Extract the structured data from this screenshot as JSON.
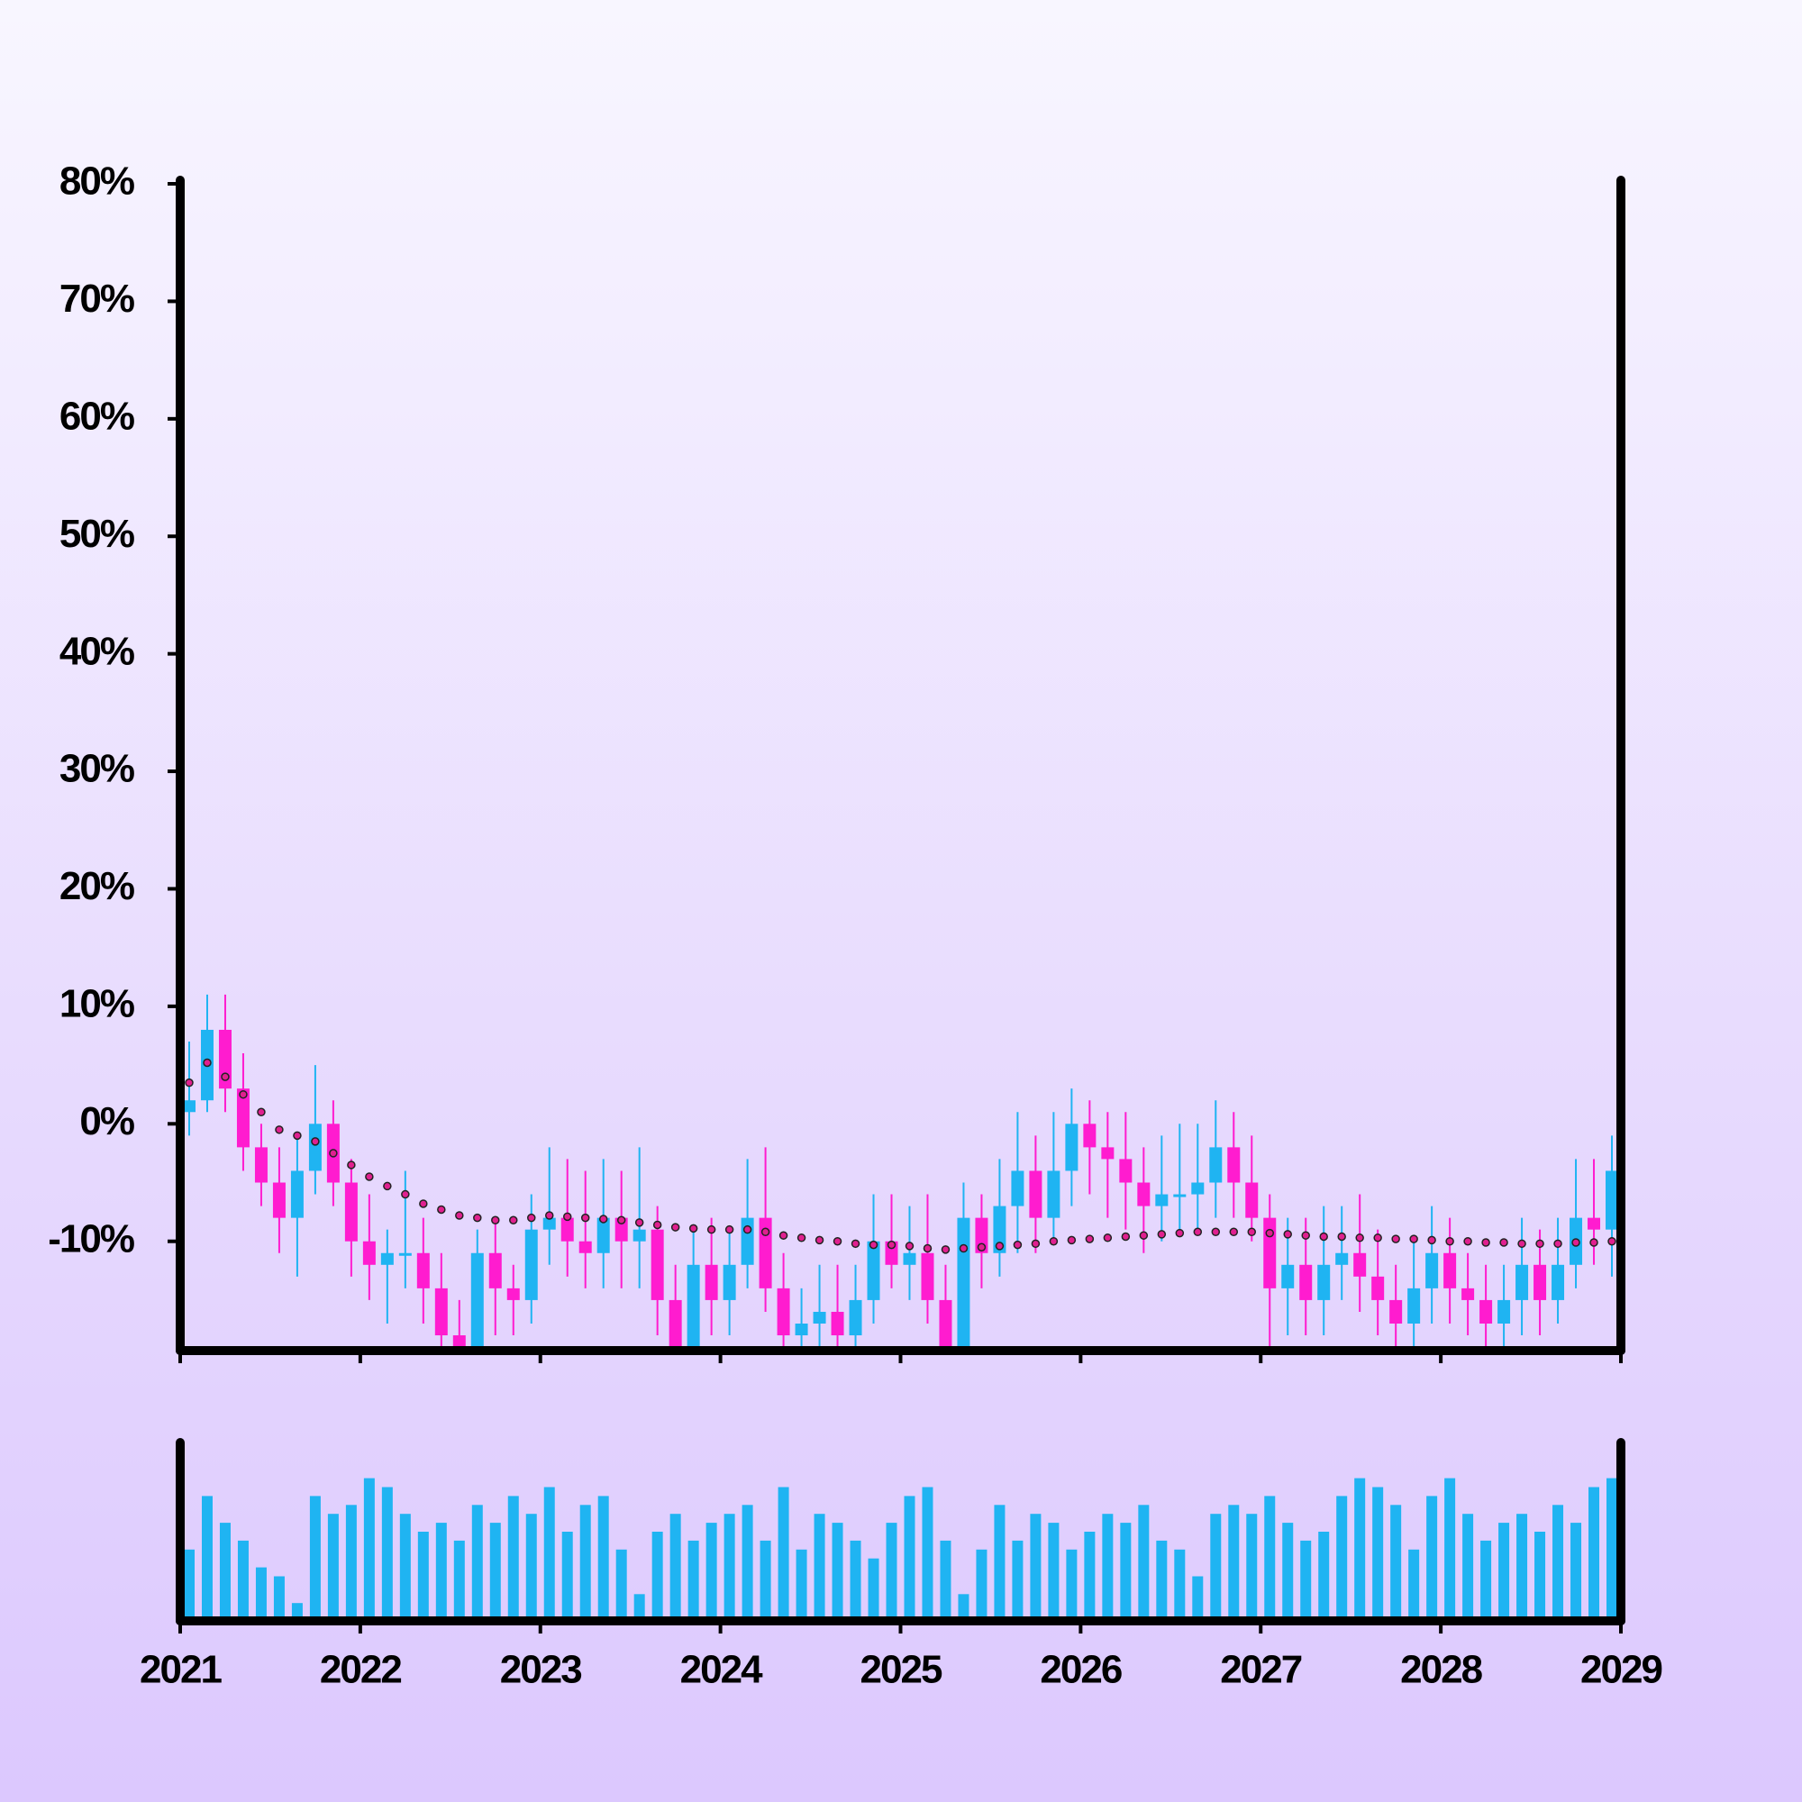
{
  "chart_data": {
    "type": "candlestick",
    "x": [
      2021.05,
      2021.15,
      2021.25,
      2021.35,
      2021.45,
      2021.55,
      2021.65,
      2021.75,
      2021.85,
      2021.95,
      2022.05,
      2022.15,
      2022.25,
      2022.35,
      2022.45,
      2022.55,
      2022.65,
      2022.75,
      2022.85,
      2022.95,
      2023.05,
      2023.15,
      2023.25,
      2023.35,
      2023.45,
      2023.55,
      2023.65,
      2023.75,
      2023.85,
      2023.95,
      2024.05,
      2024.15,
      2024.25,
      2024.35,
      2024.45,
      2024.55,
      2024.65,
      2024.75,
      2024.85,
      2024.95,
      2025.05,
      2025.15,
      2025.25,
      2025.35,
      2025.45,
      2025.55,
      2025.65,
      2025.75,
      2025.85,
      2025.95,
      2026.05,
      2026.15,
      2026.25,
      2026.35,
      2026.45,
      2026.55,
      2026.65,
      2026.75,
      2026.85,
      2026.95,
      2027.05,
      2027.15,
      2027.25,
      2027.35,
      2027.45,
      2027.55,
      2027.65,
      2027.75,
      2027.85,
      2027.95,
      2028.05,
      2028.15,
      2028.25,
      2028.35,
      2028.45,
      2028.55,
      2028.65,
      2028.75,
      2028.85,
      2028.95
    ],
    "open": [
      1,
      2,
      8,
      3,
      -2,
      -5,
      -8,
      -4,
      0,
      -5,
      -10,
      -12,
      -11,
      -11,
      -14,
      -18,
      -20,
      -11,
      -14,
      -15,
      -9,
      -8,
      -10,
      -11,
      -8,
      -10,
      -9,
      -15,
      -20,
      -12,
      -15,
      -12,
      -8,
      -14,
      -18,
      -17,
      -16,
      -18,
      -15,
      -10,
      -12,
      -11,
      -15,
      -20,
      -8,
      -11,
      -7,
      -4,
      -8,
      -4,
      0,
      -2,
      -3,
      -5,
      -7,
      -6,
      -6,
      -5,
      -2,
      -5,
      -8,
      -14,
      -12,
      -15,
      -12,
      -11,
      -13,
      -15,
      -17,
      -14,
      -11,
      -14,
      -15,
      -17,
      -15,
      -12,
      -15,
      -12,
      -8,
      -9
    ],
    "high": [
      7,
      11,
      11,
      6,
      0,
      -2,
      -1,
      5,
      2,
      -3,
      -6,
      -9,
      -4,
      -8,
      -11,
      -15,
      -9,
      -8,
      -12,
      -6,
      -2,
      -3,
      -4,
      -3,
      -4,
      -2,
      -7,
      -12,
      -9,
      -8,
      -9,
      -3,
      -2,
      -11,
      -14,
      -12,
      -12,
      -12,
      -6,
      -6,
      -7,
      -6,
      -12,
      -5,
      -6,
      -3,
      1,
      -1,
      1,
      3,
      2,
      1,
      1,
      -2,
      -1,
      0,
      0,
      2,
      1,
      -1,
      -6,
      -8,
      -8,
      -7,
      -7,
      -6,
      -9,
      -12,
      -10,
      -7,
      -8,
      -11,
      -12,
      -12,
      -8,
      -9,
      -8,
      -3,
      -3,
      -1
    ],
    "low": [
      -1,
      1,
      1,
      -4,
      -7,
      -11,
      -13,
      -6,
      -7,
      -13,
      -15,
      -17,
      -14,
      -17,
      -22,
      -23,
      -22,
      -18,
      -18,
      -17,
      -12,
      -13,
      -14,
      -14,
      -14,
      -14,
      -18,
      -23,
      -23,
      -18,
      -18,
      -14,
      -16,
      -21,
      -20,
      -19,
      -20,
      -20,
      -17,
      -14,
      -15,
      -17,
      -22,
      -22,
      -14,
      -13,
      -11,
      -11,
      -10,
      -7,
      -6,
      -8,
      -9,
      -11,
      -10,
      -9,
      -9,
      -8,
      -8,
      -10,
      -19,
      -18,
      -18,
      -18,
      -15,
      -16,
      -18,
      -20,
      -19,
      -17,
      -17,
      -18,
      -20,
      -20,
      -18,
      -18,
      -17,
      -14,
      -12,
      -13
    ],
    "close": [
      2,
      8,
      3,
      -2,
      -5,
      -8,
      -4,
      0,
      -5,
      -10,
      -12,
      -11,
      -11,
      -14,
      -18,
      -20,
      -11,
      -14,
      -15,
      -9,
      -8,
      -10,
      -11,
      -8,
      -10,
      -9,
      -15,
      -20,
      -12,
      -15,
      -12,
      -8,
      -14,
      -18,
      -17,
      -16,
      -18,
      -15,
      -10,
      -12,
      -11,
      -15,
      -20,
      -8,
      -11,
      -7,
      -4,
      -8,
      -4,
      0,
      -2,
      -3,
      -5,
      -7,
      -6,
      -6,
      -5,
      -2,
      -5,
      -8,
      -14,
      -12,
      -15,
      -12,
      -11,
      -13,
      -15,
      -17,
      -14,
      -11,
      -14,
      -15,
      -17,
      -15,
      -12,
      -15,
      -12,
      -8,
      -9,
      -4
    ],
    "up_color": "#1fb4f2",
    "down_color": "#ff1ccf",
    "moving_average": {
      "color": "#e0208f",
      "values": [
        3.5,
        5.2,
        4,
        2.5,
        1,
        -0.5,
        -1,
        -1.5,
        -2.5,
        -3.5,
        -4.5,
        -5.3,
        -6,
        -6.8,
        -7.3,
        -7.8,
        -8,
        -8.2,
        -8.2,
        -8,
        -7.8,
        -7.9,
        -8,
        -8.1,
        -8.2,
        -8.4,
        -8.6,
        -8.8,
        -8.9,
        -9,
        -9,
        -9,
        -9.2,
        -9.5,
        -9.7,
        -9.9,
        -10,
        -10.2,
        -10.3,
        -10.3,
        -10.4,
        -10.6,
        -10.7,
        -10.6,
        -10.5,
        -10.4,
        -10.3,
        -10.2,
        -10,
        -9.9,
        -9.8,
        -9.7,
        -9.6,
        -9.5,
        -9.4,
        -9.3,
        -9.2,
        -9.2,
        -9.2,
        -9.2,
        -9.3,
        -9.4,
        -9.5,
        -9.6,
        -9.6,
        -9.7,
        -9.7,
        -9.8,
        -9.8,
        -9.9,
        -10,
        -10,
        -10.1,
        -10.1,
        -10.2,
        -10.2,
        -10.2,
        -10.1,
        -10.1,
        -10
      ]
    },
    "volume": {
      "color": "#1fb4f2",
      "values": [
        40,
        70,
        55,
        45,
        30,
        25,
        10,
        70,
        60,
        65,
        80,
        75,
        60,
        50,
        55,
        45,
        65,
        55,
        70,
        60,
        75,
        50,
        65,
        70,
        40,
        15,
        50,
        60,
        45,
        55,
        60,
        65,
        45,
        75,
        40,
        60,
        55,
        45,
        35,
        55,
        70,
        75,
        45,
        15,
        40,
        65,
        45,
        60,
        55,
        40,
        50,
        60,
        55,
        65,
        45,
        40,
        25,
        60,
        65,
        60,
        70,
        55,
        45,
        50,
        70,
        80,
        75,
        65,
        40,
        70,
        80,
        60,
        45,
        55,
        60,
        50,
        65,
        55,
        75,
        80
      ]
    },
    "vlim": [
      0,
      100
    ],
    "xlim": [
      2021,
      2029
    ],
    "xticks": [
      2021,
      2022,
      2023,
      2024,
      2025,
      2026,
      2027,
      2028,
      2029
    ],
    "ylim": [
      -19.3,
      80
    ],
    "yticks": [
      {
        "value": -10,
        "label": "-10%"
      },
      {
        "value": 0,
        "label": "0%"
      },
      {
        "value": 10,
        "label": "10%"
      },
      {
        "value": 20,
        "label": "20%"
      },
      {
        "value": 30,
        "label": "30%"
      },
      {
        "value": 40,
        "label": "40%"
      },
      {
        "value": 50,
        "label": "50%"
      },
      {
        "value": 60,
        "label": "60%"
      },
      {
        "value": 70,
        "label": "70%"
      },
      {
        "value": 80,
        "label": "80%"
      }
    ]
  }
}
